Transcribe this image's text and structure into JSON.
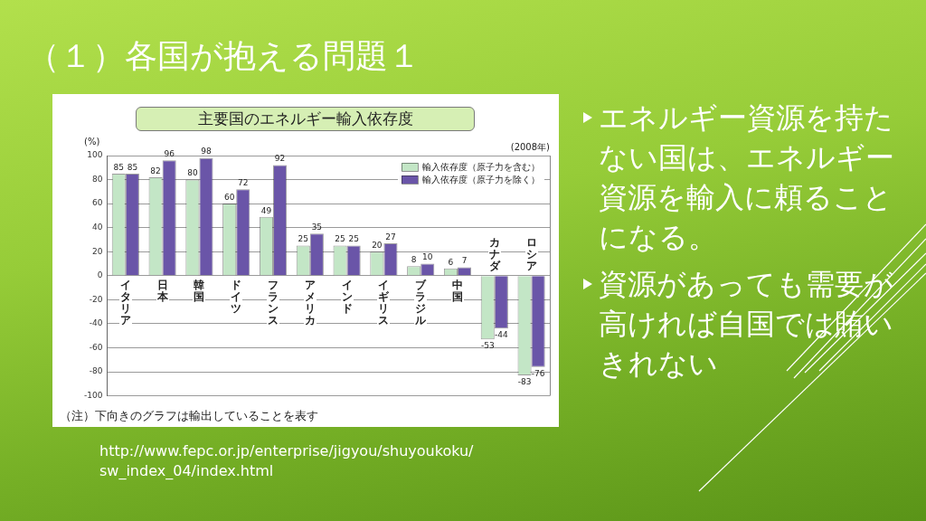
{
  "chart_data": {
    "type": "bar",
    "title": "（１）各国が抱える問題１",
    "subtitle": "主要国のエネルギー輸入依存度",
    "ylabel": "(%)",
    "categories": [
      "イタリア",
      "日本",
      "韓国",
      "ドイツ",
      "フランス",
      "アメリカ",
      "インド",
      "イギリス",
      "ブラジル",
      "中国",
      "カナダ",
      "ロシア"
    ],
    "series": [
      {
        "name": "輸入依存度（原子力を含む）",
        "color": "#c3e6c6",
        "values": [
          85,
          82,
          80,
          60,
          49,
          25,
          25,
          20,
          8,
          6,
          -53,
          -83
        ]
      },
      {
        "name": "輸入依存度（原子力を除く）",
        "color": "#6a55a8",
        "values": [
          85,
          96,
          98,
          72,
          92,
          35,
          25,
          27,
          10,
          7,
          -44,
          -76
        ]
      }
    ],
    "ylim": [
      -100,
      100
    ],
    "yticks": [
      -100,
      -80,
      -60,
      -40,
      -20,
      0,
      20,
      40,
      60,
      80,
      100
    ],
    "grid": "y",
    "legend": "top right",
    "data_labels": true,
    "annotations": [
      "(2008年)",
      "（注）下向きのグラフは輸出していることを表す",
      "エネルギー資源を持たない国は、エネルギー資源を輸入に頼ることになる。",
      "資源があっても需要が高ければ自国では賄いきれない",
      "http://www.fepc.or.jp/enterprise/jigyou/shuyoukoku/sw_index_04/index.html"
    ]
  }
}
